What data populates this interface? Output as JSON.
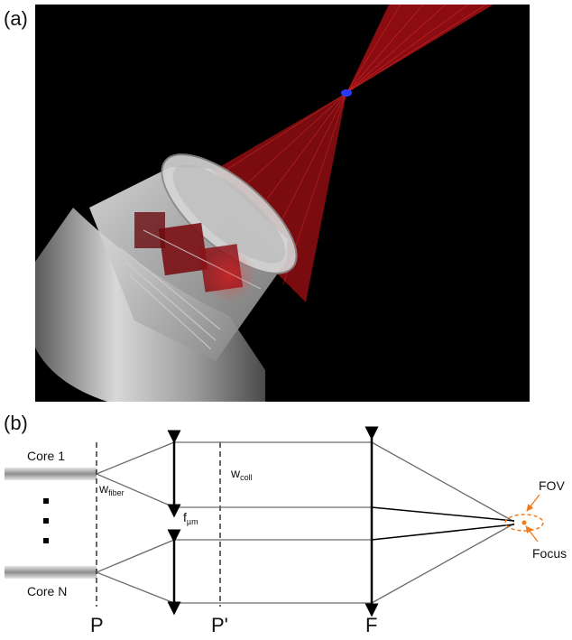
{
  "panels": {
    "a": {
      "label": "(a)"
    },
    "b": {
      "label": "(b)",
      "core_top": "Core 1",
      "core_bottom": "Core N",
      "w_fiber": {
        "base": "w",
        "sub": "fiber"
      },
      "w_coll": {
        "base": "w",
        "sub": "coll"
      },
      "f_um": {
        "base": "f",
        "sub": "µm"
      },
      "fov": "FOV",
      "focus": "Focus",
      "plane_p": "P",
      "plane_p_prime": "P'",
      "plane_f": "F"
    }
  },
  "colors": {
    "background_render": "#000000",
    "beam": "#c0141c",
    "focus_spot": "#2b39ff",
    "fov_accent": "#f07a1c",
    "ray": "#6b6b6b",
    "lens_arrow": "#000000"
  },
  "icons": {
    "fiber": "fiber-core-icon",
    "lens": "lens-arrow-icon",
    "ellipsis": "vertical-ellipsis-icon"
  }
}
